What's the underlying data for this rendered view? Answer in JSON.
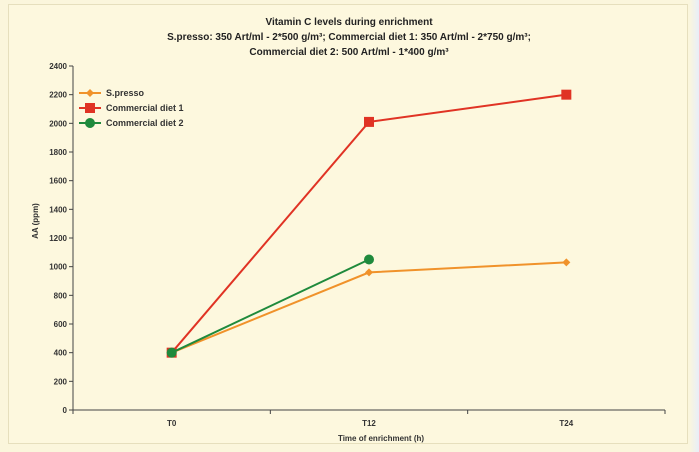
{
  "chart_data": {
    "type": "line",
    "title": "Vitamin C levels during enrichment",
    "subtitle_lines": [
      "S.presso: 350 Art/ml - 2*500 g/m³; Commercial diet 1: 350 Art/ml - 2*750 g/m³;",
      "Commercial diet 2: 500 Art/ml - 1*400 g/m³"
    ],
    "xlabel": "Time of enrichment (h)",
    "ylabel": "AA (ppm)",
    "categories": [
      "T0",
      "T12",
      "T24"
    ],
    "ylim": [
      0,
      2400
    ],
    "yticks": [
      "0",
      "200",
      "400",
      "600",
      "800",
      "1000",
      "1200",
      "1400",
      "1600",
      "1800",
      "2000",
      "2200",
      "2400"
    ],
    "legend_position": "top-left",
    "grid": false,
    "series": [
      {
        "name": "S.presso",
        "color": "#f0922a",
        "marker": "diamond",
        "values": [
          400,
          960,
          1030
        ]
      },
      {
        "name": "Commercial diet 1",
        "color": "#e03324",
        "marker": "square",
        "values": [
          400,
          2010,
          2200
        ]
      },
      {
        "name": "Commercial diet 2",
        "color": "#1f8a3c",
        "marker": "circle",
        "values": [
          400,
          1050,
          null
        ]
      }
    ]
  }
}
